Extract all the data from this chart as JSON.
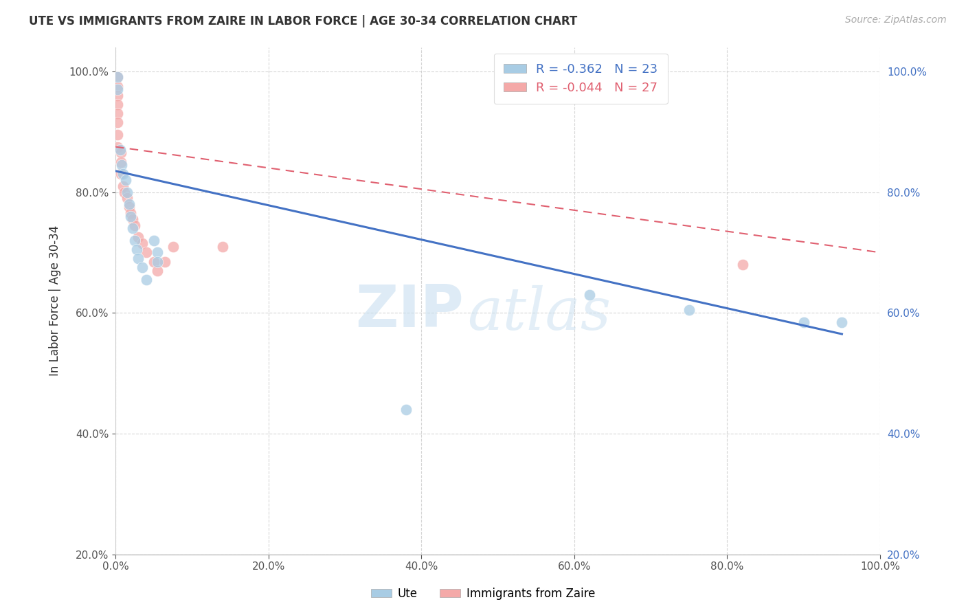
{
  "title": "UTE VS IMMIGRANTS FROM ZAIRE IN LABOR FORCE | AGE 30-34 CORRELATION CHART",
  "source": "Source: ZipAtlas.com",
  "ylabel": "In Labor Force | Age 30-34",
  "xlim": [
    0.0,
    1.0
  ],
  "ylim": [
    0.2,
    1.04
  ],
  "watermark_zip": "ZIP",
  "watermark_atlas": "atlas",
  "ute_R": -0.362,
  "ute_N": 23,
  "zaire_R": -0.044,
  "zaire_N": 27,
  "ute_color": "#a8cce4",
  "zaire_color": "#f4a9a8",
  "trendline_ute_color": "#4472c4",
  "trendline_zaire_color": "#e06070",
  "ute_x": [
    0.003,
    0.003,
    0.006,
    0.008,
    0.01,
    0.013,
    0.015,
    0.018,
    0.02,
    0.022,
    0.025,
    0.028,
    0.03,
    0.035,
    0.04,
    0.05,
    0.055,
    0.055,
    0.62,
    0.75,
    0.9,
    0.95,
    0.38
  ],
  "ute_y": [
    0.99,
    0.97,
    0.87,
    0.845,
    0.83,
    0.82,
    0.8,
    0.78,
    0.76,
    0.74,
    0.72,
    0.705,
    0.69,
    0.675,
    0.655,
    0.72,
    0.7,
    0.685,
    0.63,
    0.605,
    0.585,
    0.585,
    0.44
  ],
  "zaire_x": [
    0.003,
    0.003,
    0.003,
    0.003,
    0.003,
    0.003,
    0.003,
    0.003,
    0.007,
    0.007,
    0.007,
    0.01,
    0.012,
    0.015,
    0.018,
    0.02,
    0.022,
    0.025,
    0.03,
    0.035,
    0.04,
    0.05,
    0.055,
    0.065,
    0.075,
    0.14,
    0.82
  ],
  "zaire_y": [
    0.99,
    0.975,
    0.96,
    0.945,
    0.93,
    0.915,
    0.895,
    0.875,
    0.865,
    0.85,
    0.83,
    0.81,
    0.8,
    0.79,
    0.775,
    0.765,
    0.755,
    0.745,
    0.725,
    0.715,
    0.7,
    0.685,
    0.67,
    0.685,
    0.71,
    0.71,
    0.68
  ],
  "ute_trend_x0": 0.0,
  "ute_trend_x1": 0.95,
  "ute_trend_y0": 0.835,
  "ute_trend_y1": 0.565,
  "zaire_trend_x0": 0.0,
  "zaire_trend_x1": 1.0,
  "zaire_trend_y0": 0.875,
  "zaire_trend_y1": 0.7,
  "grid_yticks": [
    0.2,
    0.4,
    0.6,
    0.8,
    1.0
  ],
  "grid_xticks": [
    0.0,
    0.2,
    0.4,
    0.6,
    0.8,
    1.0
  ],
  "legend_ute_label": "Ute",
  "legend_zaire_label": "Immigrants from Zaire",
  "bg_color": "#ffffff"
}
